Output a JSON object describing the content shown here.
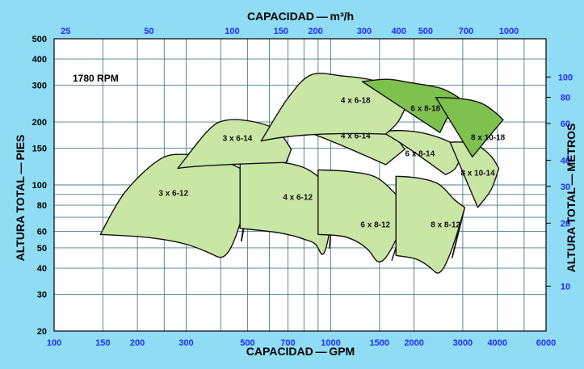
{
  "chart_data": {
    "type": "area",
    "rpm_label": "1780 RPM",
    "xlabel_bottom": "CAPACIDAD — GPM",
    "xlabel_top": "CAPACIDAD — m³/h",
    "ylabel_left": "ALTURA TOTAL — PIES",
    "ylabel_right": "ALTURA TOTAL — METROS",
    "x_scale": "log",
    "y_scale": "log",
    "xlim": [
      100,
      6000
    ],
    "ylim": [
      20,
      500
    ],
    "grid": true,
    "x_ticks_bottom": [
      100,
      150,
      200,
      300,
      500,
      700,
      1000,
      1500,
      2000,
      3000,
      4000,
      6000
    ],
    "x_ticks_top": [
      25,
      50,
      100,
      150,
      200,
      300,
      400,
      500,
      700,
      1000
    ],
    "y_ticks_left": [
      20,
      30,
      40,
      50,
      60,
      80,
      100,
      150,
      200,
      300,
      400,
      500
    ],
    "y_ticks_right": [
      10,
      20,
      30,
      40,
      60,
      80,
      100
    ],
    "x_gridlines": [
      100,
      150,
      200,
      250,
      300,
      400,
      500,
      600,
      700,
      800,
      900,
      1000,
      1500,
      2000,
      3000,
      4000,
      5000,
      6000
    ],
    "y_gridlines": [
      20,
      30,
      40,
      50,
      60,
      70,
      80,
      90,
      100,
      150,
      200,
      300,
      400,
      500
    ],
    "series": [
      {
        "name": "3 x 6-12",
        "color": "#c9e6a4",
        "label_at": [
          270,
          92
        ],
        "top": [
          [
            147,
            58
          ],
          [
            180,
            92
          ],
          [
            240,
            132
          ],
          [
            300,
            140
          ],
          [
            400,
            132
          ],
          [
            520,
            112
          ]
        ],
        "bottom": [
          [
            147,
            58
          ],
          [
            220,
            56
          ],
          [
            300,
            52
          ],
          [
            380,
            46
          ],
          [
            455,
            40
          ]
        ],
        "right": [
          [
            455,
            40
          ],
          [
            485,
            62
          ],
          [
            520,
            112
          ]
        ]
      },
      {
        "name": "4 x 6-12",
        "color": "#c9e6a4",
        "label_at": [
          760,
          88
        ],
        "top": [
          [
            470,
            135
          ],
          [
            620,
            130
          ],
          [
            800,
            121
          ],
          [
            950,
            103
          ],
          [
            1040,
            90
          ]
        ],
        "bottom": [
          [
            470,
            62
          ],
          [
            650,
            59
          ],
          [
            800,
            55
          ],
          [
            900,
            50
          ],
          [
            960,
            36
          ]
        ],
        "right": [
          [
            960,
            36
          ],
          [
            1000,
            58
          ],
          [
            1040,
            90
          ]
        ]
      },
      {
        "name": "6 x 8-12",
        "color": "#c9e6a4",
        "label_at": [
          1450,
          65
        ],
        "top": [
          [
            900,
            118
          ],
          [
            1150,
            116
          ],
          [
            1450,
            109
          ],
          [
            1720,
            90
          ],
          [
            1900,
            75
          ]
        ],
        "bottom": [
          [
            900,
            58
          ],
          [
            1150,
            56
          ],
          [
            1400,
            47
          ],
          [
            1550,
            33
          ]
        ],
        "right": [
          [
            1550,
            33
          ],
          [
            1720,
            50
          ],
          [
            1900,
            75
          ]
        ]
      },
      {
        "name": "8 x 8-12",
        "color": "#c9e6a4",
        "label_at": [
          2600,
          65
        ],
        "top": [
          [
            1720,
            110
          ],
          [
            2050,
            108
          ],
          [
            2450,
            101
          ],
          [
            2800,
            85
          ],
          [
            3050,
            78
          ]
        ],
        "bottom": [
          [
            1720,
            46
          ],
          [
            2050,
            44
          ],
          [
            2350,
            39
          ],
          [
            2600,
            33
          ]
        ],
        "right": [
          [
            2600,
            33
          ],
          [
            2820,
            52
          ],
          [
            3050,
            78
          ]
        ]
      },
      {
        "name": "3 x 6-14",
        "color": "#c9e6a4",
        "label_at": [
          460,
          168
        ],
        "top": [
          [
            280,
            120
          ],
          [
            360,
            182
          ],
          [
            420,
            204
          ],
          [
            530,
            200
          ],
          [
            640,
            182
          ],
          [
            720,
            148
          ]
        ],
        "bottom": [
          [
            280,
            120
          ],
          [
            330,
            125
          ]
        ],
        "right": [
          [
            720,
            148
          ],
          [
            690,
            128
          ]
        ]
      },
      {
        "name": "4 x 6-14",
        "color": "#c9e6a4",
        "label_at": [
          1230,
          173
        ],
        "top": [
          [
            760,
            184
          ],
          [
            900,
            208
          ],
          [
            1100,
            206
          ],
          [
            1350,
            196
          ],
          [
            1700,
            168
          ],
          [
            1850,
            148
          ]
        ],
        "bottom": [
          [
            760,
            184
          ],
          [
            850,
            182
          ]
        ],
        "right": [
          [
            1850,
            148
          ],
          [
            1700,
            135
          ],
          [
            1580,
            125
          ]
        ]
      },
      {
        "name": "6 x 8-14",
        "color": "#c9e6a4",
        "label_at": [
          2100,
          142
        ],
        "top": [
          [
            1500,
            180
          ],
          [
            1800,
            182
          ],
          [
            2200,
            176
          ],
          [
            2700,
            160
          ],
          [
            3000,
            143
          ]
        ],
        "bottom": [
          [
            1500,
            180
          ],
          [
            1650,
            176
          ]
        ],
        "right": [
          [
            3000,
            143
          ],
          [
            2820,
            120
          ],
          [
            2600,
            112
          ]
        ]
      },
      {
        "name": "8 x 10-14",
        "color": "#c9e6a4",
        "label_at": [
          3400,
          115
        ],
        "top": [
          [
            2700,
            160
          ],
          [
            3000,
            160
          ],
          [
            3400,
            154
          ],
          [
            3800,
            137
          ],
          [
            4050,
            120
          ]
        ],
        "bottom": [
          [
            2700,
            160
          ]
        ],
        "right": [
          [
            4050,
            120
          ],
          [
            3800,
            95
          ],
          [
            3400,
            78
          ]
        ]
      },
      {
        "name": "4 x 6-18",
        "color": "#c9e6a4",
        "label_at": [
          1230,
          255
        ],
        "top": [
          [
            560,
            162
          ],
          [
            700,
            260
          ],
          [
            850,
            336
          ],
          [
            1100,
            332
          ],
          [
            1400,
            318
          ],
          [
            1650,
            295
          ],
          [
            1900,
            248
          ]
        ],
        "bottom": [
          [
            560,
            162
          ],
          [
            850,
            184
          ]
        ],
        "right": [
          [
            1900,
            248
          ],
          [
            1750,
            200
          ],
          [
            1580,
            175
          ]
        ]
      },
      {
        "name": "6 x 8-18",
        "color": "#7fc14f",
        "label_at": [
          2200,
          234
        ],
        "top": [
          [
            1300,
            312
          ],
          [
            1600,
            320
          ],
          [
            1950,
            308
          ],
          [
            2500,
            290
          ],
          [
            2900,
            262
          ]
        ],
        "bottom": [
          [
            1300,
            312
          ]
        ],
        "right": [
          [
            2900,
            262
          ],
          [
            2650,
            212
          ],
          [
            2480,
            178
          ]
        ]
      },
      {
        "name": "8 x 10-18",
        "color": "#7fc14f",
        "label_at": [
          3700,
          170
        ],
        "top": [
          [
            2400,
            262
          ],
          [
            3000,
            258
          ],
          [
            3500,
            246
          ],
          [
            3900,
            224
          ],
          [
            4200,
            205
          ]
        ],
        "bottom": [
          [
            2400,
            262
          ]
        ],
        "right": [
          [
            4200,
            205
          ],
          [
            3700,
            168
          ],
          [
            3250,
            136
          ]
        ]
      }
    ]
  }
}
